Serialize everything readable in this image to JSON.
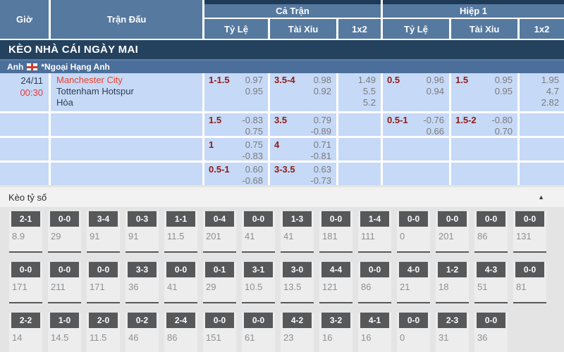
{
  "colors": {
    "header_blue": "#56799f",
    "header_backdrop_navy": "#1e3a57",
    "title_bar_navy": "#24415e",
    "league_bar_blue": "#4b6f9a",
    "odds_row_blue": "#c6d9f7",
    "handicap_red": "#8e1a16",
    "odds_value_gray": "#7b7b7b",
    "team_home_red": "#e8432d",
    "time_red": "#e4393c",
    "dark_text": "#2c3e50",
    "score_box_gray": "#57585a"
  },
  "header": {
    "time_col": "Giờ",
    "match_col": "Trận Đấu",
    "groups": [
      {
        "label": "Cả Trận",
        "cols": [
          "Tỷ Lệ",
          "Tài Xỉu",
          "1x2"
        ]
      },
      {
        "label": "Hiệp 1",
        "cols": [
          "Tỷ Lệ",
          "Tài Xỉu",
          "1x2"
        ]
      }
    ]
  },
  "section_title": "KÈO NHÀ CÁI NGÀY MAI",
  "league": {
    "country": "Anh",
    "flag_icon": "england-flag",
    "name": "*Ngoại Hạng Anh"
  },
  "match": {
    "date": "24/11",
    "time": "00:30",
    "home": "Manchester City",
    "away": "Tottenham Hotspur",
    "draw": "Hòa"
  },
  "odds": {
    "rows": [
      {
        "cells": [
          {
            "line": "1-1.5",
            "vals": [
              "0.97",
              "0.95"
            ]
          },
          {
            "line": "3.5-4",
            "vals": [
              "0.98",
              "0.92"
            ]
          },
          {
            "vals": [
              "1.49",
              "5.5",
              "5.2"
            ]
          },
          {
            "line": "0.5",
            "vals": [
              "0.96",
              "0.94"
            ]
          },
          {
            "line": "1.5",
            "vals": [
              "0.95",
              "0.95"
            ]
          },
          {
            "vals": [
              "1.95",
              "4.7",
              "2.82"
            ]
          }
        ]
      },
      {
        "cells": [
          {
            "line": "1.5",
            "vals": [
              "-0.83",
              "0.75"
            ]
          },
          {
            "line": "3.5",
            "vals": [
              "0.79",
              "-0.89"
            ]
          },
          {
            "vals": []
          },
          {
            "line": "0.5-1",
            "vals": [
              "-0.76",
              "0.66"
            ]
          },
          {
            "line": "1.5-2",
            "vals": [
              "-0.80",
              "0.70"
            ]
          },
          {
            "vals": []
          }
        ]
      },
      {
        "cells": [
          {
            "line": "1",
            "vals": [
              "0.75",
              "-0.83"
            ]
          },
          {
            "line": "4",
            "vals": [
              "0.71",
              "-0.81"
            ]
          },
          {
            "vals": []
          },
          {
            "vals": []
          },
          {
            "vals": []
          },
          {
            "vals": []
          }
        ]
      },
      {
        "cells": [
          {
            "line": "0.5-1",
            "vals": [
              "0.60",
              "-0.68"
            ]
          },
          {
            "line": "3-3.5",
            "vals": [
              "0.63",
              "-0.73"
            ]
          },
          {
            "vals": []
          },
          {
            "vals": []
          },
          {
            "vals": []
          },
          {
            "vals": []
          }
        ]
      }
    ]
  },
  "score_section": {
    "title": "Kèo tỷ số",
    "collapse_icon": "triangle-up",
    "collapse_glyph": "▲",
    "rows": [
      [
        {
          "score": "2-1",
          "odds": "8.9"
        },
        {
          "score": "0-0",
          "odds": "29"
        },
        {
          "score": "3-4",
          "odds": "91"
        },
        {
          "score": "0-3",
          "odds": "91"
        },
        {
          "score": "1-1",
          "odds": "11.5"
        },
        {
          "score": "0-4",
          "odds": "201"
        },
        {
          "score": "0-0",
          "odds": "41"
        },
        {
          "score": "1-3",
          "odds": "41"
        },
        {
          "score": "0-0",
          "odds": "181"
        },
        {
          "score": "1-4",
          "odds": "111"
        },
        {
          "score": "0-0",
          "odds": "0"
        },
        {
          "score": "0-0",
          "odds": "201"
        },
        {
          "score": "0-0",
          "odds": "86"
        },
        {
          "score": "0-0",
          "odds": "131"
        }
      ],
      [
        {
          "score": "0-0",
          "odds": "171"
        },
        {
          "score": "0-0",
          "odds": "211"
        },
        {
          "score": "0-0",
          "odds": "171"
        },
        {
          "score": "3-3",
          "odds": "36"
        },
        {
          "score": "0-0",
          "odds": "41"
        },
        {
          "score": "0-1",
          "odds": "29"
        },
        {
          "score": "3-1",
          "odds": "10.5"
        },
        {
          "score": "3-0",
          "odds": "13.5"
        },
        {
          "score": "4-4",
          "odds": "121"
        },
        {
          "score": "0-0",
          "odds": "86"
        },
        {
          "score": "4-0",
          "odds": "21"
        },
        {
          "score": "1-2",
          "odds": "18"
        },
        {
          "score": "4-3",
          "odds": "51"
        },
        {
          "score": "0-0",
          "odds": "81"
        }
      ],
      [
        {
          "score": "2-2",
          "odds": "14"
        },
        {
          "score": "1-0",
          "odds": "14.5"
        },
        {
          "score": "2-0",
          "odds": "11.5"
        },
        {
          "score": "0-2",
          "odds": "46"
        },
        {
          "score": "2-4",
          "odds": "86"
        },
        {
          "score": "0-0",
          "odds": "151"
        },
        {
          "score": "0-0",
          "odds": "61"
        },
        {
          "score": "4-2",
          "odds": "23"
        },
        {
          "score": "3-2",
          "odds": "16"
        },
        {
          "score": "4-1",
          "odds": "16"
        },
        {
          "score": "0-0",
          "odds": "0"
        },
        {
          "score": "2-3",
          "odds": "31"
        },
        {
          "score": "0-0",
          "odds": "36"
        }
      ]
    ]
  }
}
